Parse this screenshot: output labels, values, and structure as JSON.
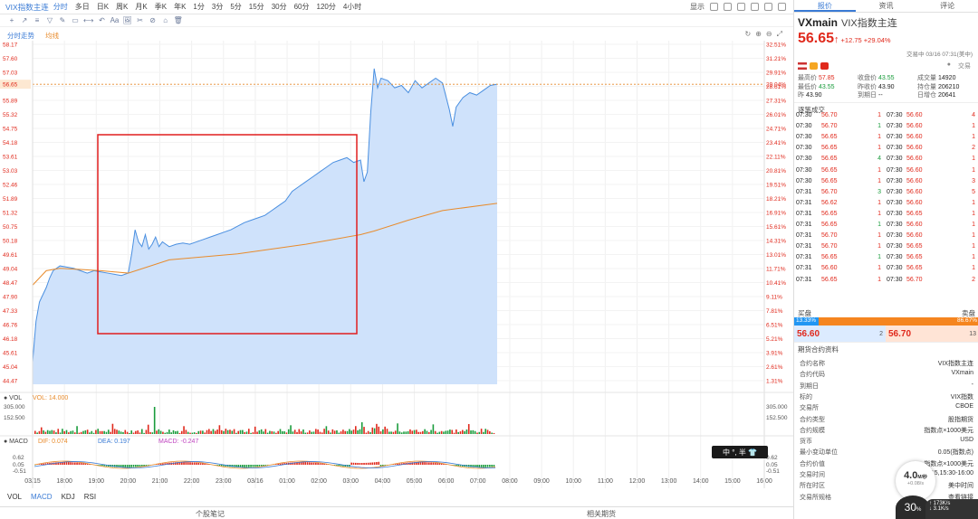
{
  "topbar": {
    "title": "VIX指数主连",
    "periods": [
      "分时",
      "多日",
      "日K",
      "周K",
      "月K",
      "季K",
      "年K",
      "1分",
      "3分",
      "5分",
      "15分",
      "30分",
      "60分",
      "120分",
      "4小时"
    ],
    "display": "显示",
    "right_tabs": [
      "报价",
      "资讯",
      "评论"
    ]
  },
  "toolbar": {
    "icons": [
      "+",
      "↗",
      "≡",
      "▽",
      "✎",
      "▭",
      "⟷",
      "↶",
      "Aa",
      "🖼",
      "✂",
      "⊘",
      "⌂",
      "🗑"
    ]
  },
  "chart_legend": {
    "a": "分时走势",
    "b": "均线"
  },
  "colors": {
    "up": "#e0291c",
    "down": "#1a9c3c",
    "accent": "#3a7bd5",
    "avg": "#e88b2c",
    "highlight": "#e01e1e"
  },
  "chart_data": [
    {
      "type": "area",
      "name": "intraday",
      "y_left_ticks": [
        "58.17",
        "57.60",
        "57.03",
        "56.46",
        "55.89",
        "55.32",
        "54.75",
        "54.18",
        "53.61",
        "53.03",
        "52.46",
        "51.89",
        "51.32",
        "50.75",
        "50.18",
        "49.61",
        "49.04",
        "48.47",
        "47.90",
        "47.33",
        "46.76",
        "46.18",
        "45.61",
        "45.04",
        "44.47"
      ],
      "y_right_ticks": [
        "32.51%",
        "31.21%",
        "29.91%",
        "28.61%",
        "27.31%",
        "26.01%",
        "24.71%",
        "23.41%",
        "22.11%",
        "20.81%",
        "19.51%",
        "18.21%",
        "16.91%",
        "15.61%",
        "14.31%",
        "13.01%",
        "11.71%",
        "10.41%",
        "9.11%",
        "7.81%",
        "6.51%",
        "5.21%",
        "3.91%",
        "2.61%",
        "1.31%"
      ],
      "ylim": [
        44.18,
        58.46
      ],
      "current_price_label": "56.65",
      "current_pct_label": "29.04%",
      "x_ticks": [
        "03/15",
        "18:00",
        "19:00",
        "20:00",
        "21:00",
        "22:00",
        "23:00",
        "03/16",
        "01:00",
        "02:00",
        "03:00",
        "04:00",
        "05:00",
        "06:00",
        "07:00",
        "08:00",
        "09:00",
        "10:00",
        "11:00",
        "12:00",
        "13:00",
        "14:00",
        "15:00",
        "16:00"
      ],
      "price": [
        [
          0,
          45.1
        ],
        [
          0.5,
          46.8
        ],
        [
          1,
          47.6
        ],
        [
          1.5,
          47.9
        ],
        [
          2,
          48.2
        ],
        [
          2.5,
          48.6
        ],
        [
          3,
          48.9
        ],
        [
          4,
          49.1
        ],
        [
          5,
          49.05
        ],
        [
          6,
          49.0
        ],
        [
          7,
          48.9
        ],
        [
          8,
          48.8
        ],
        [
          9,
          48.9
        ],
        [
          10,
          48.85
        ],
        [
          11,
          48.8
        ],
        [
          12,
          48.75
        ],
        [
          13,
          48.7
        ],
        [
          14,
          48.8
        ],
        [
          14.5,
          49.6
        ],
        [
          15,
          50.6
        ],
        [
          15.5,
          50.1
        ],
        [
          16,
          49.9
        ],
        [
          16.5,
          50.4
        ],
        [
          17,
          49.8
        ],
        [
          17.5,
          50.0
        ],
        [
          18,
          50.3
        ],
        [
          18.5,
          49.9
        ],
        [
          19,
          50.1
        ],
        [
          19.5,
          50.0
        ],
        [
          20,
          49.9
        ],
        [
          21,
          50.0
        ],
        [
          22,
          50.05
        ],
        [
          23,
          50.0
        ],
        [
          24,
          50.1
        ],
        [
          25,
          50.2
        ],
        [
          26,
          50.3
        ],
        [
          27,
          50.4
        ],
        [
          28,
          50.5
        ],
        [
          29,
          50.6
        ],
        [
          30,
          50.75
        ],
        [
          31,
          50.9
        ],
        [
          32,
          51.0
        ],
        [
          33,
          51.1
        ],
        [
          34,
          51.2
        ],
        [
          35,
          51.4
        ],
        [
          36,
          51.6
        ],
        [
          37,
          51.8
        ],
        [
          38,
          52.2
        ],
        [
          39,
          52.4
        ],
        [
          40,
          52.6
        ],
        [
          41,
          52.8
        ],
        [
          42,
          53.0
        ],
        [
          43,
          53.2
        ],
        [
          44,
          53.4
        ],
        [
          45,
          53.5
        ],
        [
          46,
          53.6
        ],
        [
          47,
          53.4
        ],
        [
          48,
          53.5
        ],
        [
          48.5,
          52.6
        ],
        [
          49,
          53.0
        ],
        [
          49.5,
          55.5
        ],
        [
          50,
          57.3
        ],
        [
          50.5,
          56.5
        ],
        [
          51,
          56.9
        ],
        [
          52,
          56.8
        ],
        [
          53,
          56.5
        ],
        [
          54,
          56.6
        ],
        [
          55,
          56.3
        ],
        [
          56,
          56.8
        ],
        [
          57,
          56.5
        ],
        [
          58,
          56.7
        ],
        [
          59,
          56.9
        ],
        [
          60,
          56.7
        ],
        [
          61,
          55.6
        ],
        [
          61.5,
          54.9
        ],
        [
          62,
          55.7
        ],
        [
          63,
          56.1
        ],
        [
          64,
          56.3
        ],
        [
          65,
          56.2
        ],
        [
          66,
          56.4
        ],
        [
          67,
          56.6
        ],
        [
          68,
          56.65
        ]
      ],
      "avg": [
        [
          0,
          48.3
        ],
        [
          2,
          48.9
        ],
        [
          4,
          49.0
        ],
        [
          10,
          48.9
        ],
        [
          14,
          48.8
        ],
        [
          20,
          49.35
        ],
        [
          30,
          49.6
        ],
        [
          40,
          50.0
        ],
        [
          48,
          50.4
        ],
        [
          50,
          50.55
        ],
        [
          55,
          51.0
        ],
        [
          60,
          51.4
        ],
        [
          68,
          51.7
        ]
      ]
    },
    {
      "type": "bar",
      "name": "VOL",
      "label": "VOL: 14.000",
      "ticks_left": [
        "305.000",
        "152.500"
      ],
      "ticks_right": [
        "305.000",
        "152.500"
      ],
      "ylim": [
        0,
        305
      ]
    },
    {
      "type": "bar",
      "name": "MACD",
      "label_dif": "DIF: 0.074",
      "label_dea": "DEA: 0.197",
      "label_macd": "MACD: -0.247",
      "ticks_left": [
        "0.62",
        "0.05",
        "-0.51"
      ],
      "ticks_right": [
        "0.62",
        "0.05",
        "-0.51"
      ],
      "ylim": [
        -0.51,
        0.62
      ]
    }
  ],
  "indicators": [
    "VOL",
    "MACD",
    "KDJ",
    "RSI"
  ],
  "bottom": {
    "left": "个股笔记",
    "right": "相关期货"
  },
  "ime": {
    "text": "中 °, 半 👕"
  },
  "quote": {
    "symbol": "VXmain",
    "name": "VIX指数主连",
    "price": "56.65",
    "arrow": "↑",
    "change": "+12.75 +29.04%",
    "time": "交易中 03/16 07:31(美中)",
    "fields": [
      {
        "k": "最高价",
        "v": "57.85",
        "c": "red"
      },
      {
        "k": "收盘价",
        "v": "43.55",
        "c": "green"
      },
      {
        "k": "成交量",
        "v": "14920",
        "c": "blk"
      },
      {
        "k": "最低价",
        "v": "43.55",
        "c": "green"
      },
      {
        "k": "昨收价",
        "v": "43.90",
        "c": "blk"
      },
      {
        "k": "持仓量",
        "v": "206210",
        "c": "blk"
      },
      {
        "k": "昨",
        "v": "43.90",
        "c": "blk"
      },
      {
        "k": "到期日",
        "v": "--",
        "c": "blk"
      },
      {
        "k": "日增仓",
        "v": "20641",
        "c": "blk"
      }
    ],
    "trade_btn": "交易"
  },
  "ticks_title": "逐笔成交",
  "ticks": [
    [
      "07:30",
      "56.70",
      "1",
      "07:30",
      "56.60",
      "4"
    ],
    [
      "07:30",
      "56.70",
      "1",
      "07:30",
      "56.60",
      "1"
    ],
    [
      "07:30",
      "56.65",
      "1",
      "07:30",
      "56.60",
      "1"
    ],
    [
      "07:30",
      "56.65",
      "1",
      "07:30",
      "56.60",
      "2"
    ],
    [
      "07:30",
      "56.65",
      "4",
      "07:30",
      "56.60",
      "1"
    ],
    [
      "07:30",
      "56.65",
      "1",
      "07:30",
      "56.60",
      "1"
    ],
    [
      "07:30",
      "56.65",
      "1",
      "07:30",
      "56.60",
      "3"
    ],
    [
      "07:31",
      "56.70",
      "3",
      "07:30",
      "56.60",
      "5"
    ],
    [
      "07:31",
      "56.62",
      "1",
      "07:30",
      "56.60",
      "1"
    ],
    [
      "07:31",
      "56.65",
      "1",
      "07:30",
      "56.65",
      "1"
    ],
    [
      "07:31",
      "56.65",
      "1",
      "07:30",
      "56.60",
      "1"
    ],
    [
      "07:31",
      "56.70",
      "1",
      "07:30",
      "56.60",
      "1"
    ],
    [
      "07:31",
      "56.70",
      "1",
      "07:30",
      "56.65",
      "1"
    ],
    [
      "07:31",
      "56.65",
      "1",
      "07:30",
      "56.65",
      "1"
    ],
    [
      "07:31",
      "56.60",
      "1",
      "07:30",
      "56.65",
      "1"
    ],
    [
      "07:31",
      "56.65",
      "1",
      "07:30",
      "56.70",
      "2"
    ]
  ],
  "book": {
    "buy_label": "买盘",
    "sell_label": "卖盘",
    "buy_pct": "13.33%",
    "sell_pct": "86.67%",
    "buy_price": "56.60",
    "buy_qty": "2",
    "sell_price": "56.70",
    "sell_qty": "13"
  },
  "contract_title": "期货合约资料",
  "contract": [
    {
      "k": "合约名称",
      "v": "VIX指数主连"
    },
    {
      "k": "合约代码",
      "v": "VXmain"
    },
    {
      "k": "到期日",
      "v": "-"
    },
    {
      "k": "标的",
      "v": "VIX指数"
    },
    {
      "k": "交易所",
      "v": "CBOE"
    },
    {
      "k": "合约类型",
      "v": "股指期货"
    },
    {
      "k": "合约规模",
      "v": "指数点×1000美元"
    },
    {
      "k": "货币",
      "v": "USD"
    },
    {
      "k": "最小变动单位",
      "v": "0.05(指数点)"
    },
    {
      "k": "合约价值",
      "v": "指数点×1000美元"
    },
    {
      "k": "交易时间",
      "v": "17:00-15:15,15:30-16:00"
    },
    {
      "k": "所在时区",
      "v": "美中时间"
    },
    {
      "k": "交易所规格",
      "v": "查看链接"
    }
  ],
  "float": {
    "speed": "4.0",
    "unit": "M/秒",
    "sub": "+0.08/s",
    "pct": "30",
    "pct_sign": "%",
    "net": "173K/s",
    "net2": "3.1K/s"
  }
}
